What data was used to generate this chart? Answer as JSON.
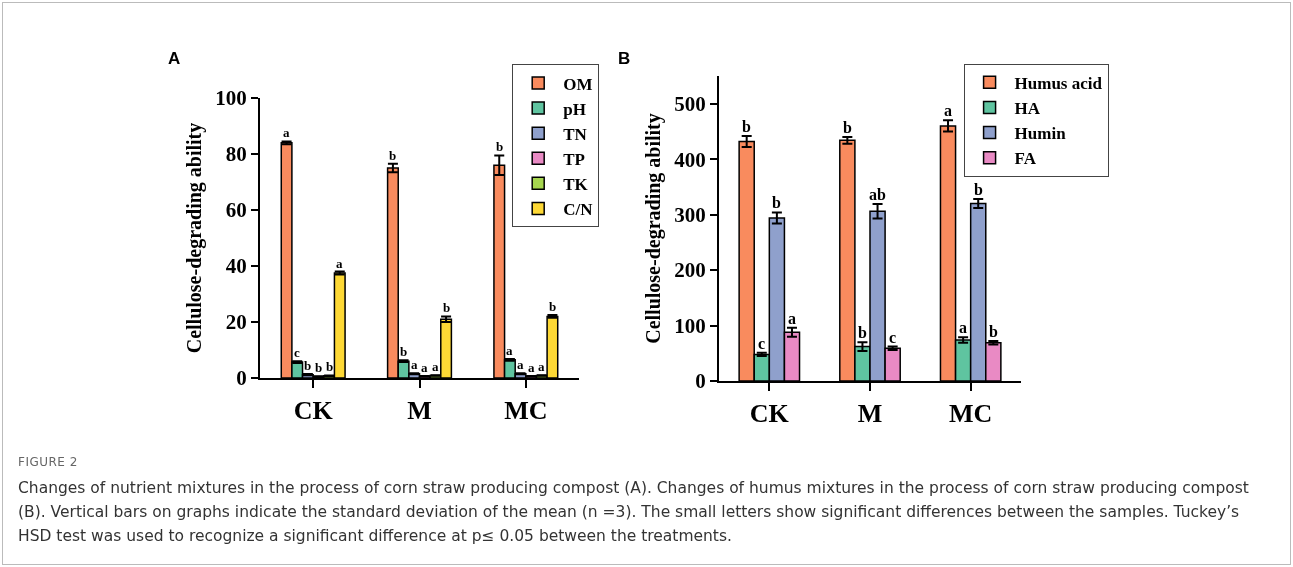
{
  "chart_data": [
    {
      "type": "bar",
      "title": "A",
      "ylabel": "Cellulose-degrading ability",
      "categories": [
        "CK",
        "M",
        "MC"
      ],
      "ylim": [
        0,
        100
      ],
      "yticks": [
        0,
        20,
        40,
        60,
        80,
        100
      ],
      "grid": false,
      "legend": "top right",
      "annotations": [
        "FIGURE 2",
        "Changes of nutrient mixtures in the process of corn straw producing compost (A). Changes of humus mixtures in the process of corn straw producing compost (B). Vertical bars on graphs indicate the standard deviation of the mean (n =3). The small letters show significant differences between the samples. Tuckey’s HSD test was used to recognize a significant difference at p≤ 0.05 between the treatments."
      ],
      "series": [
        {
          "name": "OM",
          "color": "#f98b5e",
          "values": [
            84,
            75,
            76
          ],
          "errors": [
            0.5,
            1.5,
            3.5
          ],
          "value_labels": [
            "a",
            "b",
            "b"
          ]
        },
        {
          "name": "pH",
          "color": "#5fc4a0",
          "values": [
            5.7,
            6,
            6.5
          ],
          "errors": [
            0.3,
            0.3,
            0.3
          ],
          "value_labels": [
            "c",
            "b",
            "a"
          ]
        },
        {
          "name": "TN",
          "color": "#8fa0cc",
          "values": [
            1.2,
            1.5,
            1.5
          ],
          "errors": [
            0.2,
            0.2,
            0.2
          ],
          "value_labels": [
            "b",
            "a",
            "a"
          ]
        },
        {
          "name": "TP",
          "color": "#e98ac4",
          "values": [
            0.5,
            0.6,
            0.6
          ],
          "errors": [
            0.1,
            0.1,
            0.1
          ],
          "value_labels": [
            "b",
            "a",
            "a"
          ]
        },
        {
          "name": "TK",
          "color": "#a6d64f",
          "values": [
            0.8,
            0.9,
            0.9
          ],
          "errors": [
            0.1,
            0.1,
            0.1
          ],
          "value_labels": [
            "b",
            "a",
            "a"
          ]
        },
        {
          "name": "C/N",
          "color": "#fdd835",
          "values": [
            37.5,
            21,
            22
          ],
          "errors": [
            0.5,
            1,
            0.5
          ],
          "value_labels": [
            "a",
            "b",
            "b"
          ]
        }
      ]
    },
    {
      "type": "bar",
      "title": "B",
      "ylabel": "Cellulose-degrading ability",
      "categories": [
        "CK",
        "M",
        "MC"
      ],
      "ylim": [
        0,
        550
      ],
      "yticks": [
        0,
        100,
        200,
        300,
        400,
        500
      ],
      "grid": false,
      "legend": "top right",
      "series": [
        {
          "name": "Humus acid",
          "color": "#f98b5e",
          "values": [
            432,
            434,
            460
          ],
          "errors": [
            10,
            6,
            10
          ],
          "value_labels": [
            "b",
            "b",
            "a"
          ]
        },
        {
          "name": "HA",
          "color": "#5fc4a0",
          "values": [
            48,
            62,
            74
          ],
          "errors": [
            3,
            8,
            5
          ],
          "value_labels": [
            "c",
            "b",
            "a"
          ]
        },
        {
          "name": "Humin",
          "color": "#8fa0cc",
          "values": [
            294,
            306,
            320
          ],
          "errors": [
            10,
            13,
            8
          ],
          "value_labels": [
            "b",
            "ab",
            "b"
          ]
        },
        {
          "name": "FA",
          "color": "#e98ac4",
          "values": [
            88,
            59,
            69
          ],
          "errors": [
            8,
            3,
            3
          ],
          "value_labels": [
            "a",
            "c",
            "b"
          ]
        }
      ]
    }
  ]
}
